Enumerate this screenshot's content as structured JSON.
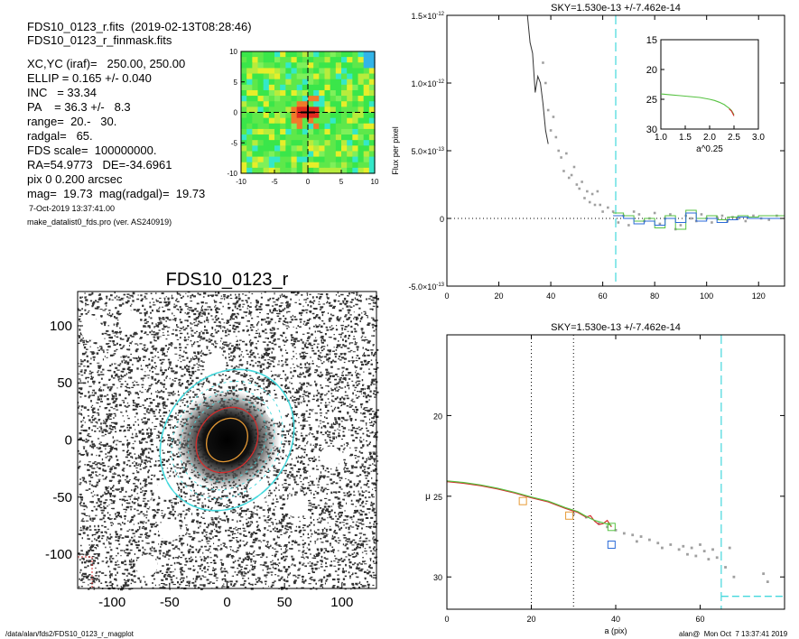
{
  "header": {
    "file_line": "FDS10_0123_r.fits  (2019-02-13T08:28:46)",
    "mask_line": "FDS10_0123_r_finmask.fits",
    "params": [
      "XC,YC (iraf)=   250.00, 250.00",
      "ELLIP = 0.165 +/- 0.040",
      "INC   = 33.34",
      "PA    = 36.3 +/-   8.3",
      "range=  20.-   30.",
      "radgal=   65.",
      "FDS scale=  100000000.",
      "RA=54.9773   DE=-34.6961",
      "pix 0 0.200 arcsec",
      "mag=  19.73  mag(radgal)=  19.73"
    ],
    "date": "7-Oct-2019 13:37:41.00",
    "program": "make_datalist0_fds.pro (ver. AS240919)"
  },
  "footer": {
    "path": "/data/alan/fds2/FDS10_0123_r_magplot",
    "user": "alan@  Mon Oct  7 13:37:41 2019"
  },
  "colors": {
    "cyan": "#44d8dc",
    "orange": "#e79a35",
    "red": "#d42c2c",
    "green": "#56c241",
    "blue": "#2a6ad8",
    "gray": "#a0a0a0"
  },
  "chart_data": [
    {
      "id": "residual-map",
      "type": "heatmap",
      "xticks": [
        "-10",
        "-5",
        "0",
        "5",
        "10"
      ],
      "yticks": [
        "10",
        "5",
        "0",
        "-5",
        "-10"
      ],
      "xlim": [
        -10,
        10
      ],
      "ylim": [
        -10,
        10
      ],
      "palette": [
        "green",
        "yellow",
        "red",
        "cyan",
        "blue"
      ]
    },
    {
      "id": "galaxy-image",
      "type": "scatter",
      "title": "FDS10_0123_r",
      "xticks": [
        "-100",
        "-50",
        "0",
        "50",
        "100"
      ],
      "yticks": [
        "100",
        "50",
        "0",
        "-50",
        "-100"
      ],
      "xlim": [
        -130,
        130
      ],
      "ylim": [
        -130,
        130
      ],
      "ellipse_semimajor": [
        20,
        30,
        65
      ],
      "ellipse_colors": [
        "orange",
        "red",
        "cyan"
      ],
      "ellipticity": 0.165,
      "pa_deg": 36.3,
      "masked_stars": [
        [
          -118,
          97
        ],
        [
          -85,
          104
        ],
        [
          -52,
          -43
        ],
        [
          -10,
          67
        ],
        [
          43,
          27
        ],
        [
          27,
          -43
        ],
        [
          60,
          -58
        ],
        [
          90,
          -15
        ],
        [
          -50,
          -79
        ],
        [
          -70,
          -110
        ],
        [
          -112,
          -140
        ]
      ]
    },
    {
      "id": "flux-profile",
      "type": "scatter",
      "title": "SKY=1.530e-13 +/-7.462e-14",
      "xlabel": "",
      "ylabel": "Flux per pixel",
      "xlim": [
        0,
        130
      ],
      "ylim": [
        -5e-13,
        1.5e-12
      ],
      "xticks": [
        "0",
        "20",
        "40",
        "60",
        "80",
        "100",
        "120"
      ],
      "yticks": [
        {
          "mant": "-5.0×10",
          "exp": "-13",
          "value": -5e-13
        },
        {
          "mant": "0",
          "exp": "",
          "value": 0
        },
        {
          "mant": "5.0×10",
          "exp": "-13",
          "value": 5e-13
        },
        {
          "mant": "1.0×10",
          "exp": "-12",
          "value": 1e-12
        },
        {
          "mant": "1.5×10",
          "exp": "-12",
          "value": 1.5e-12
        }
      ],
      "sky_line_x": 65,
      "black_profile": [
        [
          31,
          1.5e-12
        ],
        [
          32,
          1.3e-12
        ],
        [
          33,
          1.22e-12
        ],
        [
          34,
          9.3e-13
        ],
        [
          35,
          1.05e-12
        ],
        [
          36,
          1e-12
        ],
        [
          37,
          8.5e-13
        ],
        [
          38,
          6.5e-13
        ],
        [
          39,
          5.5e-13
        ]
      ],
      "gray_points": [
        [
          37,
          1.15e-12
        ],
        [
          38,
          1e-12
        ],
        [
          39,
          8e-13
        ],
        [
          40,
          6.5e-13
        ],
        [
          41,
          7.5e-13
        ],
        [
          42,
          6e-13
        ],
        [
          43,
          5e-13
        ],
        [
          44,
          4.5e-13
        ],
        [
          45,
          3.5e-13
        ],
        [
          46,
          4.8e-13
        ],
        [
          47,
          3e-13
        ],
        [
          48,
          3.2e-13
        ],
        [
          49,
          3.8e-13
        ],
        [
          50,
          2.5e-13
        ],
        [
          51,
          2.2e-13
        ],
        [
          52,
          2.7e-13
        ],
        [
          53,
          1.5e-13
        ],
        [
          54,
          2e-13
        ],
        [
          55,
          1.2e-13
        ],
        [
          56,
          1.8e-13
        ],
        [
          57,
          1e-13
        ],
        [
          58,
          2e-13
        ],
        [
          59,
          1e-13
        ],
        [
          60,
          5e-14
        ],
        [
          62,
          8e-14
        ],
        [
          64,
          5e-14
        ],
        [
          66,
          -3e-14
        ],
        [
          68,
          2e-14
        ],
        [
          70,
          -5e-14
        ],
        [
          72,
          5e-14
        ],
        [
          74,
          3e-14
        ],
        [
          76,
          -2e-14
        ],
        [
          78,
          0.0
        ],
        [
          80,
          4e-14
        ],
        [
          82,
          -4e-14
        ],
        [
          84,
          0.0
        ],
        [
          86,
          3e-14
        ],
        [
          88,
          -8e-14
        ],
        [
          90,
          -5e-14
        ],
        [
          92,
          2e-14
        ],
        [
          94,
          0.0
        ],
        [
          96,
          -2e-14
        ],
        [
          98,
          3e-14
        ],
        [
          100,
          0.0
        ],
        [
          102,
          -3e-14
        ],
        [
          104,
          1e-14
        ],
        [
          106,
          2e-14
        ],
        [
          108,
          -2e-14
        ],
        [
          110,
          1e-14
        ],
        [
          112,
          0.0
        ],
        [
          115,
          -2e-14
        ],
        [
          118,
          2e-14
        ],
        [
          121,
          0.0
        ],
        [
          124,
          -1e-14
        ],
        [
          127,
          2e-14
        ]
      ],
      "step_blue": [
        [
          64,
          2e-14
        ],
        [
          68,
          0.0
        ],
        [
          72,
          -4e-14
        ],
        [
          76,
          -2e-14
        ],
        [
          80,
          -5e-14
        ],
        [
          84,
          0.0
        ],
        [
          88,
          -3e-14
        ],
        [
          92,
          4e-14
        ],
        [
          96,
          -2e-14
        ],
        [
          100,
          0.0
        ],
        [
          104,
          -3e-14
        ],
        [
          108,
          -1e-14
        ],
        [
          112,
          1e-14
        ],
        [
          116,
          0.0
        ],
        [
          120,
          0.0
        ],
        [
          130,
          0.0
        ]
      ],
      "step_green": [
        [
          64,
          4e-14
        ],
        [
          68,
          2e-14
        ],
        [
          72,
          -2e-14
        ],
        [
          76,
          0.0
        ],
        [
          80,
          -7e-14
        ],
        [
          84,
          2e-14
        ],
        [
          88,
          -8e-14
        ],
        [
          92,
          6e-14
        ],
        [
          96,
          0.0
        ],
        [
          100,
          2e-14
        ],
        [
          104,
          -1e-14
        ],
        [
          108,
          1e-14
        ],
        [
          112,
          2e-14
        ],
        [
          116,
          1e-14
        ],
        [
          120,
          2e-14
        ],
        [
          130,
          2e-14
        ]
      ]
    },
    {
      "id": "flux-inset",
      "type": "line",
      "xlabel": "a^0.25",
      "ylabel": "",
      "xlim": [
        1.0,
        3.0
      ],
      "ylim": [
        30,
        15
      ],
      "xticks": [
        "1.0",
        "1.5",
        "2.0",
        "2.5",
        "3.0"
      ],
      "yticks": [
        "15",
        "20",
        "25",
        "30"
      ],
      "series": [
        {
          "color": "green",
          "x": [
            1.0,
            1.2,
            1.4,
            1.6,
            1.8,
            2.0,
            2.1,
            2.2,
            2.3,
            2.35,
            2.4,
            2.45,
            2.5
          ],
          "y": [
            24.1,
            24.25,
            24.4,
            24.55,
            24.7,
            25.0,
            25.2,
            25.5,
            25.9,
            26.2,
            26.5,
            26.9,
            27.6
          ]
        },
        {
          "color": "red",
          "x": [
            2.4,
            2.45,
            2.5
          ],
          "y": [
            26.6,
            27.0,
            27.8
          ]
        }
      ]
    },
    {
      "id": "mu-profile",
      "type": "scatter",
      "title": "SKY=1.530e-13 +/-7.462e-14",
      "xlabel": "a (pix)",
      "ylabel": "μ",
      "xlim": [
        0,
        80
      ],
      "ylim": [
        32,
        15
      ],
      "xticks": [
        "0",
        "20",
        "40",
        "60"
      ],
      "yticks": [
        "20",
        "25",
        "30"
      ],
      "range_lines": [
        20,
        30
      ],
      "radgal_line": 65,
      "sky_level_mu": 31.2,
      "profile_red": [
        [
          0,
          24.1
        ],
        [
          4,
          24.2
        ],
        [
          8,
          24.35
        ],
        [
          12,
          24.55
        ],
        [
          16,
          24.8
        ],
        [
          20,
          25.1
        ],
        [
          24,
          25.35
        ],
        [
          28,
          25.75
        ],
        [
          31,
          26.0
        ],
        [
          33,
          26.3
        ],
        [
          34,
          26.2
        ],
        [
          35,
          26.55
        ],
        [
          36,
          26.75
        ],
        [
          37,
          26.7
        ],
        [
          38,
          26.5
        ],
        [
          39,
          26.9
        ]
      ],
      "profile_green": [
        [
          0,
          24.05
        ],
        [
          4,
          24.15
        ],
        [
          8,
          24.3
        ],
        [
          12,
          24.5
        ],
        [
          16,
          24.75
        ],
        [
          20,
          25.05
        ],
        [
          24,
          25.3
        ],
        [
          28,
          25.7
        ],
        [
          31,
          25.95
        ],
        [
          33,
          26.25
        ],
        [
          35,
          26.5
        ],
        [
          37,
          26.65
        ],
        [
          39,
          26.8
        ]
      ],
      "gray_points": [
        [
          30,
          26.1
        ],
        [
          33,
          26.3
        ],
        [
          36,
          26.7
        ],
        [
          38,
          26.9
        ],
        [
          40,
          27.1
        ],
        [
          42,
          27.3
        ],
        [
          44,
          27.4
        ],
        [
          45,
          27.8
        ],
        [
          46,
          27.5
        ],
        [
          48,
          27.7
        ],
        [
          50,
          27.9
        ],
        [
          51,
          28.2
        ],
        [
          53,
          28.0
        ],
        [
          55,
          28.3
        ],
        [
          56,
          28.1
        ],
        [
          57,
          28.6
        ],
        [
          58,
          28.2
        ],
        [
          59,
          28.7
        ],
        [
          60,
          28.0
        ],
        [
          61,
          28.4
        ],
        [
          62,
          28.9
        ],
        [
          63,
          28.3
        ],
        [
          64,
          28.8
        ],
        [
          66,
          29.4
        ],
        [
          67,
          28.2
        ],
        [
          68,
          30.0
        ],
        [
          75,
          29.8
        ],
        [
          76,
          30.3
        ]
      ],
      "boxes": [
        {
          "x": 18,
          "y": 25.3,
          "color": "orange"
        },
        {
          "x": 29,
          "y": 26.2,
          "color": "orange"
        },
        {
          "x": 39,
          "y": 26.9,
          "color": "green"
        },
        {
          "x": 39,
          "y": 28.0,
          "color": "blue"
        }
      ]
    }
  ]
}
